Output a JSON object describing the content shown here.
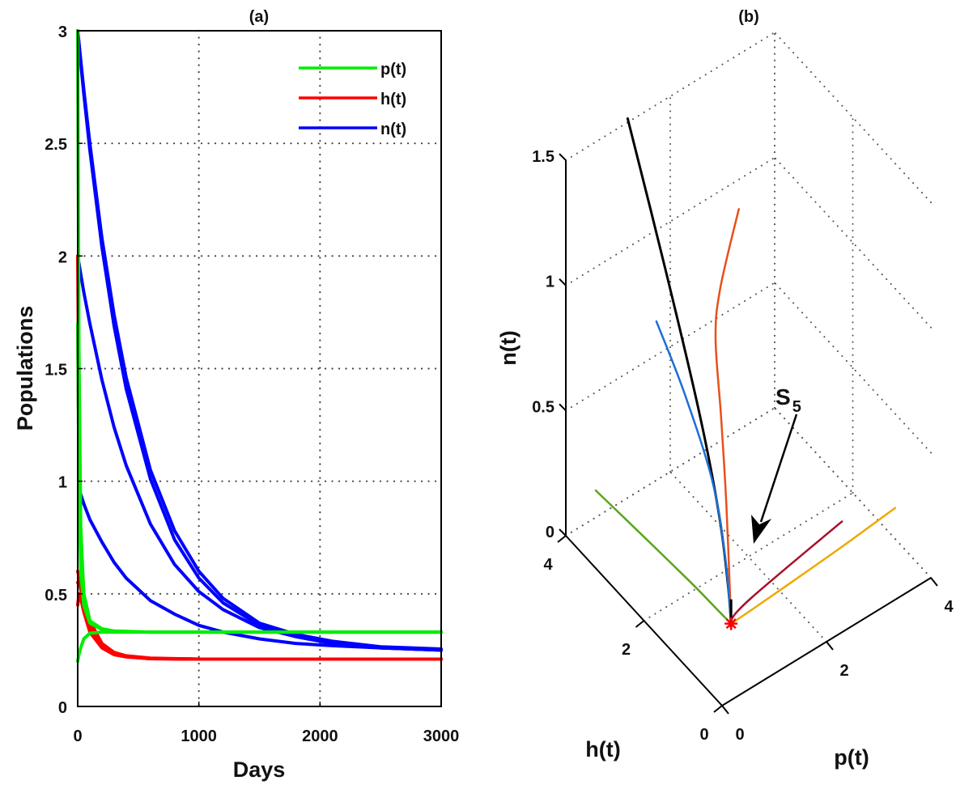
{
  "figure": {
    "panels": [
      "(a)",
      "(b)"
    ]
  },
  "chart_data": [
    {
      "type": "line",
      "title": "(a)",
      "xlabel": "Days",
      "ylabel": "Populations",
      "xlim": [
        0,
        3000
      ],
      "ylim": [
        0,
        3
      ],
      "xticks": [
        "0",
        "1000",
        "2000",
        "3000"
      ],
      "yticks": [
        "0",
        "0.5",
        "1",
        "1.5",
        "2",
        "2.5",
        "3"
      ],
      "grid": true,
      "legend": {
        "placement": "top-right",
        "entries": [
          {
            "label": "p(t)",
            "color": "#00ee00"
          },
          {
            "label": "h(t)",
            "color": "#ff0000"
          },
          {
            "label": "n(t)",
            "color": "#0000ff"
          }
        ]
      },
      "series": [
        {
          "name": "n(t)",
          "color": "#0000ff",
          "x": [
            0,
            25,
            50,
            100,
            200,
            300,
            400,
            600,
            800,
            1000,
            1200,
            1500,
            1800,
            2100,
            2500,
            3000
          ],
          "values": [
            3.0,
            2.86,
            2.72,
            2.47,
            2.04,
            1.69,
            1.41,
            1.01,
            0.74,
            0.57,
            0.46,
            0.36,
            0.31,
            0.28,
            0.26,
            0.25
          ]
        },
        {
          "name": "n(t)",
          "color": "#0000ff",
          "x": [
            0,
            25,
            50,
            100,
            200,
            300,
            400,
            600,
            800,
            1000,
            1200,
            1500,
            1800,
            2100,
            2500,
            3000
          ],
          "values": [
            3.0,
            2.87,
            2.74,
            2.5,
            2.08,
            1.74,
            1.46,
            1.05,
            0.78,
            0.6,
            0.48,
            0.37,
            0.32,
            0.29,
            0.265,
            0.255
          ]
        },
        {
          "name": "n(t)",
          "color": "#0000ff",
          "x": [
            0,
            25,
            50,
            100,
            200,
            300,
            400,
            600,
            800,
            1000,
            1200,
            1500,
            1800,
            2100,
            2500,
            3000
          ],
          "values": [
            2.0,
            1.92,
            1.84,
            1.7,
            1.45,
            1.24,
            1.07,
            0.81,
            0.63,
            0.51,
            0.43,
            0.35,
            0.31,
            0.28,
            0.26,
            0.25
          ]
        },
        {
          "name": "n(t)",
          "color": "#0000ff",
          "x": [
            20,
            50,
            100,
            200,
            300,
            400,
            600,
            800,
            1000,
            1200,
            1500,
            1800,
            2100,
            2500,
            3000
          ],
          "values": [
            0.95,
            0.9,
            0.83,
            0.73,
            0.64,
            0.57,
            0.47,
            0.41,
            0.36,
            0.33,
            0.3,
            0.28,
            0.27,
            0.26,
            0.25
          ]
        },
        {
          "name": "h(t)",
          "color": "#ff0000",
          "x": [
            0,
            10,
            25,
            50,
            100,
            200,
            300,
            400,
            600,
            1000,
            2000,
            3000
          ],
          "values": [
            2.0,
            1.3,
            0.75,
            0.5,
            0.38,
            0.28,
            0.24,
            0.225,
            0.215,
            0.21,
            0.21,
            0.21
          ]
        },
        {
          "name": "h(t)",
          "color": "#ff0000",
          "x": [
            0,
            10,
            25,
            50,
            100,
            200,
            300,
            400,
            600,
            1000,
            2000,
            3000
          ],
          "values": [
            1.7,
            1.1,
            0.65,
            0.47,
            0.37,
            0.275,
            0.238,
            0.222,
            0.213,
            0.21,
            0.21,
            0.21
          ]
        },
        {
          "name": "h(t)",
          "color": "#ff0000",
          "x": [
            0,
            10,
            25,
            50,
            100,
            200,
            300,
            400,
            600,
            1000,
            2000,
            3000
          ],
          "values": [
            0.6,
            0.58,
            0.55,
            0.48,
            0.36,
            0.27,
            0.235,
            0.222,
            0.213,
            0.21,
            0.21,
            0.21
          ]
        },
        {
          "name": "h(t)",
          "color": "#ff0000",
          "x": [
            0,
            10,
            25,
            50,
            100,
            200,
            300,
            400,
            600,
            1000,
            2000,
            3000
          ],
          "values": [
            0.45,
            0.5,
            0.48,
            0.42,
            0.33,
            0.26,
            0.23,
            0.22,
            0.212,
            0.21,
            0.21,
            0.21
          ]
        },
        {
          "name": "h(t)",
          "color": "#ff0000",
          "x": [
            0,
            10,
            25,
            50,
            100,
            200,
            300,
            400,
            600,
            1000,
            2000,
            3000
          ],
          "values": [
            0.55,
            0.56,
            0.52,
            0.45,
            0.35,
            0.265,
            0.232,
            0.221,
            0.212,
            0.21,
            0.21,
            0.21
          ]
        },
        {
          "name": "p(t)",
          "color": "#00ee00",
          "x": [
            0,
            10,
            25,
            50,
            100,
            200,
            300,
            600,
            1000,
            3000
          ],
          "values": [
            3.0,
            1.6,
            0.8,
            0.5,
            0.38,
            0.345,
            0.335,
            0.33,
            0.33,
            0.33
          ]
        },
        {
          "name": "p(t)",
          "color": "#00ee00",
          "x": [
            0,
            10,
            25,
            50,
            100,
            200,
            300,
            600,
            1000,
            3000
          ],
          "values": [
            1.7,
            1.0,
            0.6,
            0.45,
            0.37,
            0.342,
            0.334,
            0.33,
            0.33,
            0.33
          ]
        },
        {
          "name": "p(t)",
          "color": "#00ee00",
          "x": [
            0,
            10,
            25,
            50,
            100,
            200,
            300,
            600,
            1000,
            3000
          ],
          "values": [
            0.2,
            0.23,
            0.26,
            0.3,
            0.325,
            0.33,
            0.33,
            0.33,
            0.33,
            0.33
          ]
        }
      ]
    },
    {
      "type": "line",
      "title": "(b)",
      "xlabel": "p(t)",
      "ylabel": "h(t)",
      "zlabel": "n(t)",
      "xlim": [
        0,
        4
      ],
      "ylim": [
        0,
        4
      ],
      "zlim": [
        0,
        1.5
      ],
      "xticks": [
        "0",
        "2",
        "4"
      ],
      "yticks": [
        "0",
        "2",
        "4"
      ],
      "zticks": [
        "0",
        "0.5",
        "1",
        "1.5"
      ],
      "grid": true,
      "annotation": {
        "label": "S",
        "subscript": "5"
      },
      "equilibrium": {
        "p": 0.33,
        "h": 0.21,
        "n": 0.25,
        "marker": "*",
        "color": "#ff0000"
      },
      "series": [
        {
          "name": "trajectory-black",
          "color": "#000000",
          "points": [
            [
              0.1,
              2.55,
              1.9
            ],
            [
              0.12,
              1.6,
              1.45
            ],
            [
              0.2,
              0.85,
              1.0
            ],
            [
              0.28,
              0.45,
              0.65
            ],
            [
              0.32,
              0.28,
              0.4
            ],
            [
              0.33,
              0.21,
              0.25
            ]
          ]
        },
        {
          "name": "trajectory-orange",
          "color": "#e8501a",
          "points": [
            [
              0.47,
              0.2,
              1.89
            ],
            [
              0.3,
              0.45,
              1.55
            ],
            [
              0.25,
              0.5,
              1.35
            ],
            [
              0.28,
              0.4,
              1.05
            ],
            [
              0.31,
              0.3,
              0.7
            ],
            [
              0.33,
              0.21,
              0.25
            ]
          ]
        },
        {
          "name": "trajectory-blue",
          "color": "#1a6fd6",
          "points": [
            [
              0.0,
              1.68,
              1.25
            ],
            [
              0.1,
              1.1,
              1.05
            ],
            [
              0.22,
              0.55,
              0.78
            ],
            [
              0.3,
              0.32,
              0.5
            ],
            [
              0.33,
              0.21,
              0.25
            ]
          ]
        },
        {
          "name": "trajectory-green",
          "color": "#5aa51a",
          "points": [
            [
              0.2,
              3.5,
              0.24
            ],
            [
              0.25,
              2.4,
              0.245
            ],
            [
              0.3,
              1.2,
              0.25
            ],
            [
              0.32,
              0.5,
              0.25
            ],
            [
              0.33,
              0.21,
              0.25
            ]
          ]
        },
        {
          "name": "trajectory-darkred",
          "color": "#a8102a",
          "points": [
            [
              2.67,
              0.5,
              0.31
            ],
            [
              1.6,
              0.4,
              0.29
            ],
            [
              0.8,
              0.3,
              0.28
            ],
            [
              0.45,
              0.22,
              0.28
            ],
            [
              0.3,
              0.18,
              0.27
            ],
            [
              0.33,
              0.21,
              0.25
            ]
          ]
        },
        {
          "name": "trajectory-yellow",
          "color": "#f0a800",
          "points": [
            [
              3.39,
              0.1,
              0.34
            ],
            [
              2.4,
              0.12,
              0.31
            ],
            [
              1.4,
              0.16,
              0.28
            ],
            [
              0.7,
              0.19,
              0.26
            ],
            [
              0.33,
              0.21,
              0.25
            ]
          ]
        }
      ]
    }
  ]
}
